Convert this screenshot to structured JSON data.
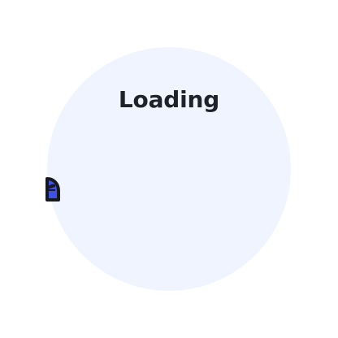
{
  "loading": {
    "title": "Loading",
    "panel_color": "#eff4ff",
    "accent_color": "#3f51e7",
    "outline_color": "#18191d",
    "icon": "loading-blob-icon"
  }
}
